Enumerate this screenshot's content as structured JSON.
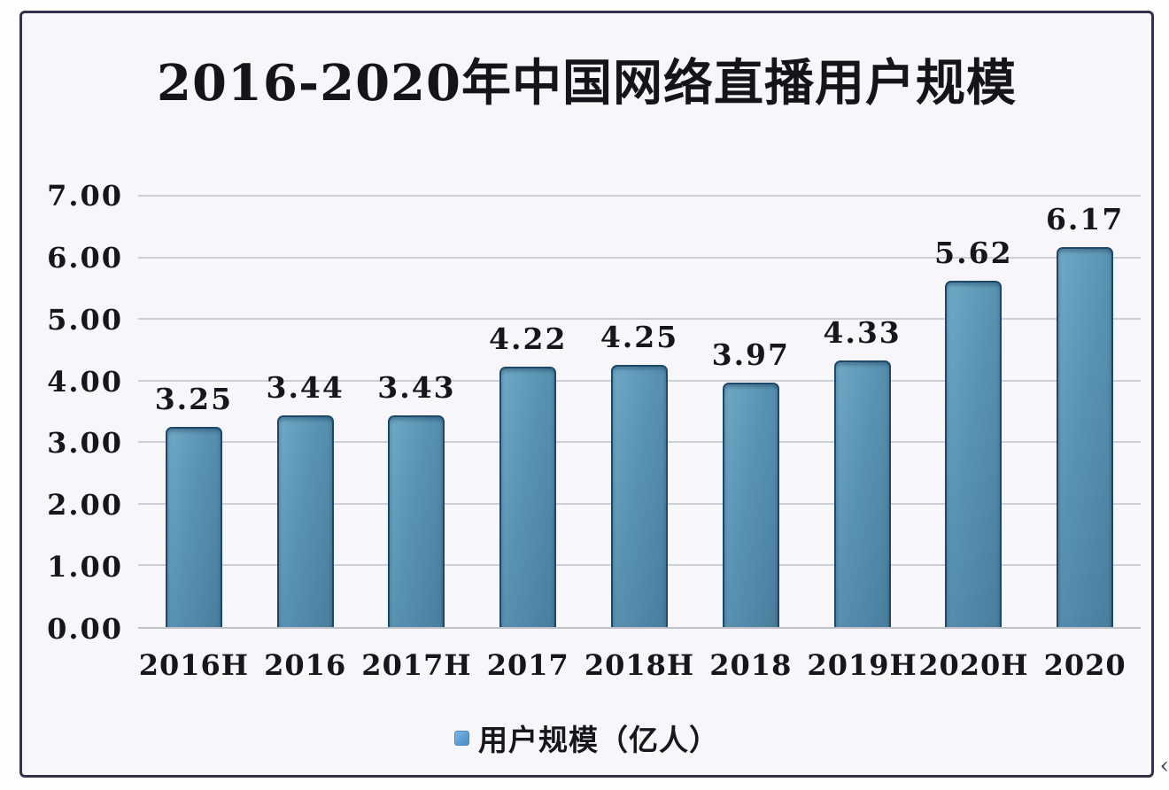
{
  "chart_data": {
    "type": "bar",
    "title": "2016-2020年中国网络直播用户规模",
    "categories": [
      "2016H",
      "2016",
      "2017H",
      "2017",
      "2018H",
      "2018",
      "2019H",
      "2020H",
      "2020"
    ],
    "values": [
      3.25,
      3.44,
      3.43,
      4.22,
      4.25,
      3.97,
      4.33,
      5.62,
      6.17
    ],
    "value_labels": [
      "3.25",
      "3.44",
      "3.43",
      "4.22",
      "4.25",
      "3.97",
      "4.33",
      "5.62",
      "6.17"
    ],
    "series_name": "用户规模（亿人）",
    "legend_label": "用户规模（亿人）",
    "legend_position": "bottom",
    "xlabel": "",
    "ylabel": "",
    "ylim": [
      0,
      7
    ],
    "y_tick_step": 1,
    "y_ticks": [
      "7.00",
      "6.00",
      "5.00",
      "4.00",
      "3.00",
      "2.00",
      "1.00",
      "0.00"
    ],
    "grid": true,
    "colors": {
      "bar_fill": "#5992b1",
      "bar_border": "#1d4867",
      "legend_marker": "#5b9bd5",
      "plot_background": "#f7f6fa",
      "frame_border": "#34324a",
      "gridline": "#cdcfd7",
      "text": "#17161d"
    }
  },
  "decorations": {
    "corner_artifact_glyph": "‹"
  }
}
